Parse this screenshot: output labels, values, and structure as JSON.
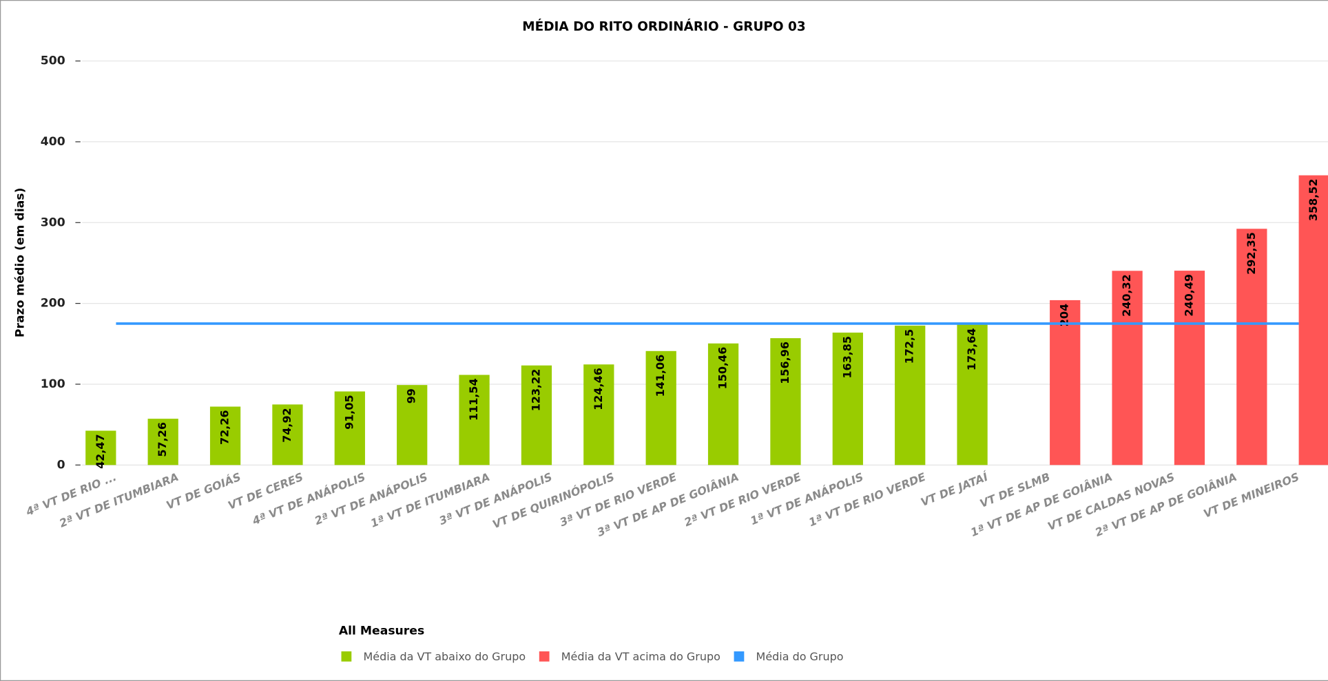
{
  "chart_data": {
    "type": "bar",
    "title": "MÉDIA DO RITO ORDINÁRIO - GRUPO 03",
    "y_label": "Prazo médio (em dias)",
    "legend_title": "All Measures",
    "categories": [
      "4ª VT DE RIO ...",
      "2ª VT DE ITUMBIARA",
      "VT DE GOIÁS",
      "VT DE CERES",
      "4ª VT DE ANÁPOLIS",
      "2ª VT DE ANÁPOLIS",
      "1ª VT DE ITUMBIARA",
      "3ª VT DE ANÁPOLIS",
      "VT DE QUIRINÓPOLIS",
      "3ª VT DE RIO VERDE",
      "3ª VT DE AP DE GOIÂNIA",
      "2ª VT DE RIO VERDE",
      "1ª VT DE ANÁPOLIS",
      "1ª VT DE RIO VERDE",
      "VT DE JATAÍ",
      "VT DE SLMB",
      "1ª VT DE AP DE GOIÂNIA",
      "VT DE CALDAS NOVAS",
      "2ª VT DE AP DE GOIÂNIA",
      "VT DE MINEIROS"
    ],
    "series": [
      {
        "name": "Média da VT abaixo do Grupo",
        "color": "#99cc00",
        "type": "bar",
        "values": [
          42.47,
          57.26,
          72.26,
          74.92,
          91.05,
          99,
          111.54,
          123.22,
          124.46,
          141.06,
          150.46,
          156.96,
          163.85,
          172.5,
          173.64,
          null,
          null,
          null,
          null,
          null
        ],
        "value_labels": [
          "42,47",
          "57,26",
          "72,26",
          "74,92",
          "91,05",
          "99",
          "111,54",
          "123,22",
          "124,46",
          "141,06",
          "150,46",
          "156,96",
          "163,85",
          "172,5",
          "173,64",
          null,
          null,
          null,
          null,
          null
        ]
      },
      {
        "name": "Média da VT acima do Grupo",
        "color": "#ff5555",
        "type": "bar",
        "values": [
          null,
          null,
          null,
          null,
          null,
          null,
          null,
          null,
          null,
          null,
          null,
          null,
          null,
          null,
          null,
          204,
          240.32,
          240.49,
          292.35,
          358.52
        ],
        "value_labels": [
          null,
          null,
          null,
          null,
          null,
          null,
          null,
          null,
          null,
          null,
          null,
          null,
          null,
          null,
          null,
          "204",
          "240,32",
          "240,49",
          "292,35",
          "358,52"
        ]
      },
      {
        "name": "Média do Grupo",
        "color": "#3399ff",
        "type": "line",
        "values": [
          175,
          175,
          175,
          175,
          175,
          175,
          175,
          175,
          175,
          175,
          175,
          175,
          175,
          175,
          175,
          175,
          175,
          175,
          175,
          175
        ]
      }
    ],
    "ylim": [
      0,
      500
    ],
    "yticks": [
      0,
      100,
      200,
      300,
      400,
      500
    ],
    "grid": true
  }
}
